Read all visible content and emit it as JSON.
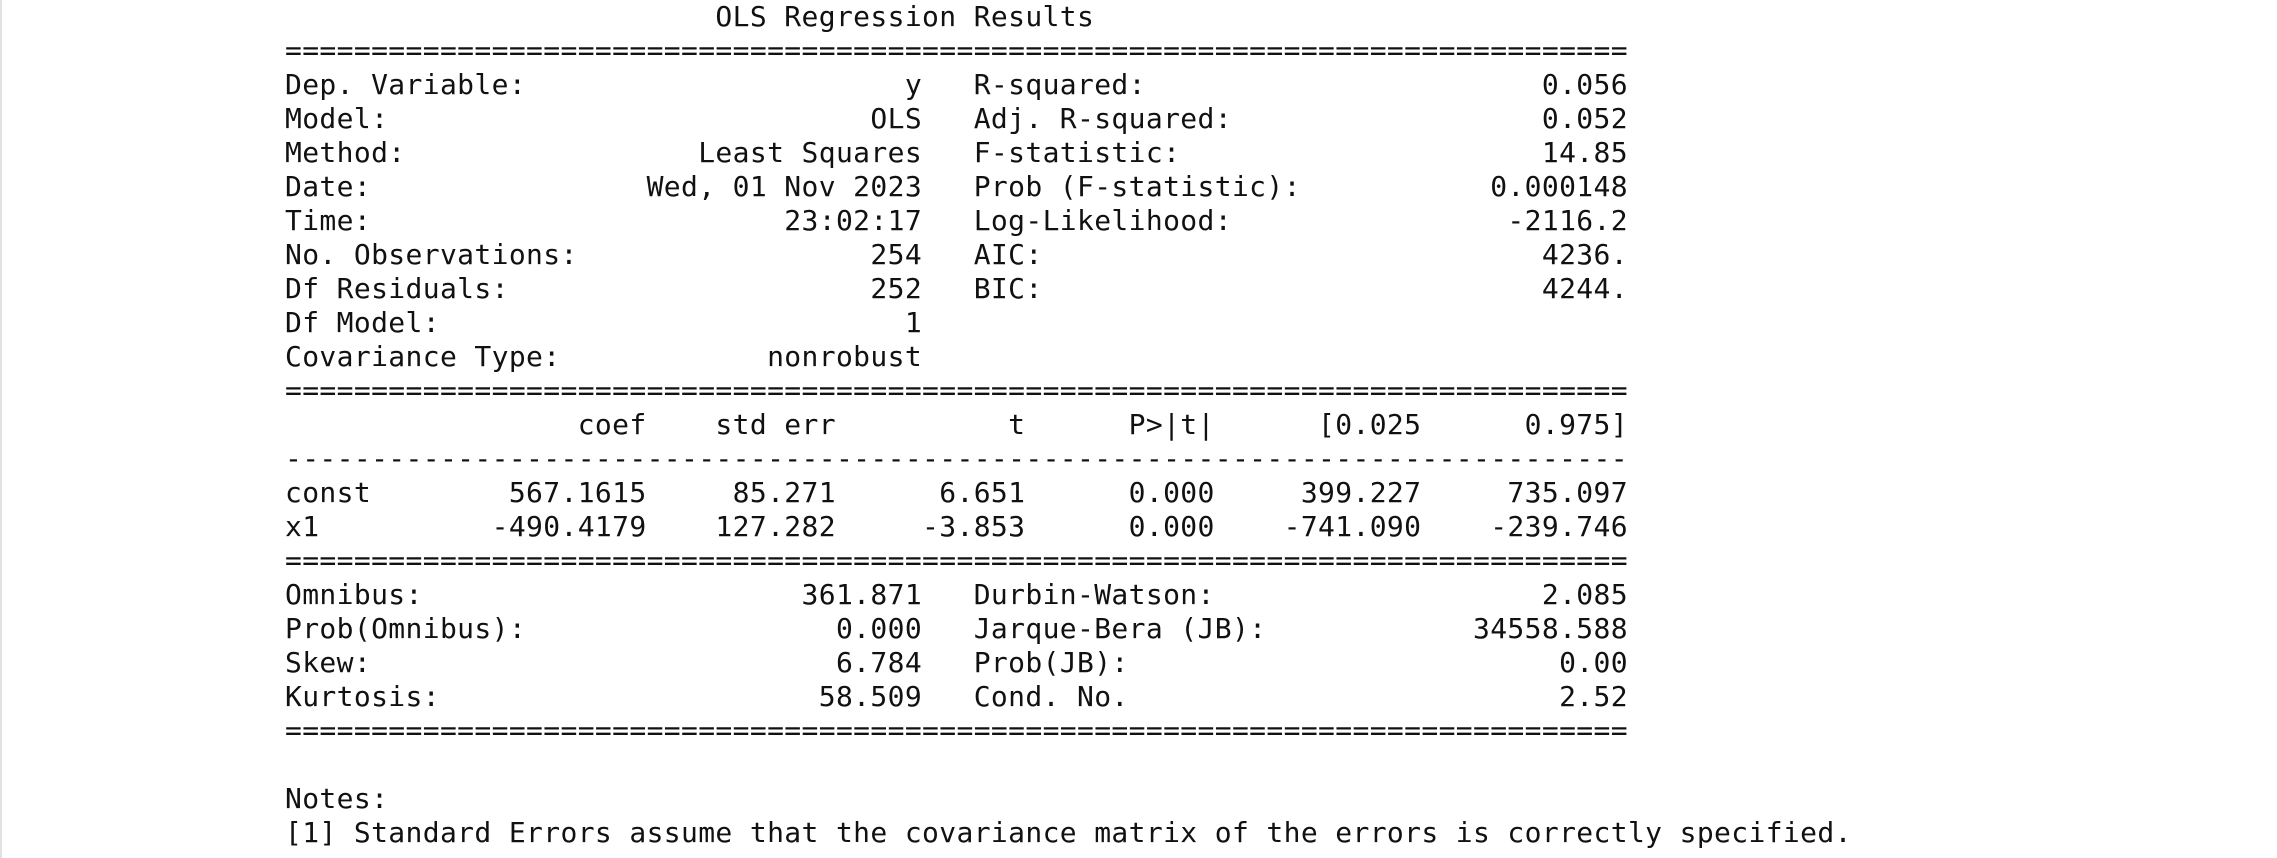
{
  "output": {
    "title_line": "                         OLS Regression Results                            ",
    "rule_double_1": "==============================================================================",
    "info_rows": [
      "Dep. Variable:                      y   R-squared:                       0.056",
      "Model:                            OLS   Adj. R-squared:                  0.052",
      "Method:                 Least Squares   F-statistic:                     14.85",
      "Date:                Wed, 01 Nov 2023   Prob (F-statistic):           0.000148",
      "Time:                        23:02:17   Log-Likelihood:                -2116.2",
      "No. Observations:                 254   AIC:                             4236.",
      "Df Residuals:                     252   BIC:                             4244.",
      "Df Model:                           1                                         ",
      "Covariance Type:            nonrobust                                         "
    ],
    "rule_double_2": "==============================================================================",
    "coef_header": "                 coef    std err          t      P>|t|      [0.025      0.975]",
    "rule_single": "------------------------------------------------------------------------------",
    "coef_rows": [
      "const        567.1615     85.271      6.651      0.000     399.227     735.097",
      "x1          -490.4179    127.282     -3.853      0.000    -741.090    -239.746"
    ],
    "rule_double_3": "==============================================================================",
    "diag_rows": [
      "Omnibus:                      361.871   Durbin-Watson:                   2.085",
      "Prob(Omnibus):                  0.000   Jarque-Bera (JB):            34558.588",
      "Skew:                           6.784   Prob(JB):                         0.00",
      "Kurtosis:                      58.509   Cond. No.                         2.52"
    ],
    "rule_double_4": "==============================================================================",
    "notes_heading": "Notes:",
    "notes": [
      "[1] Standard Errors assume that the covariance matrix of the errors is correctly specified."
    ]
  }
}
